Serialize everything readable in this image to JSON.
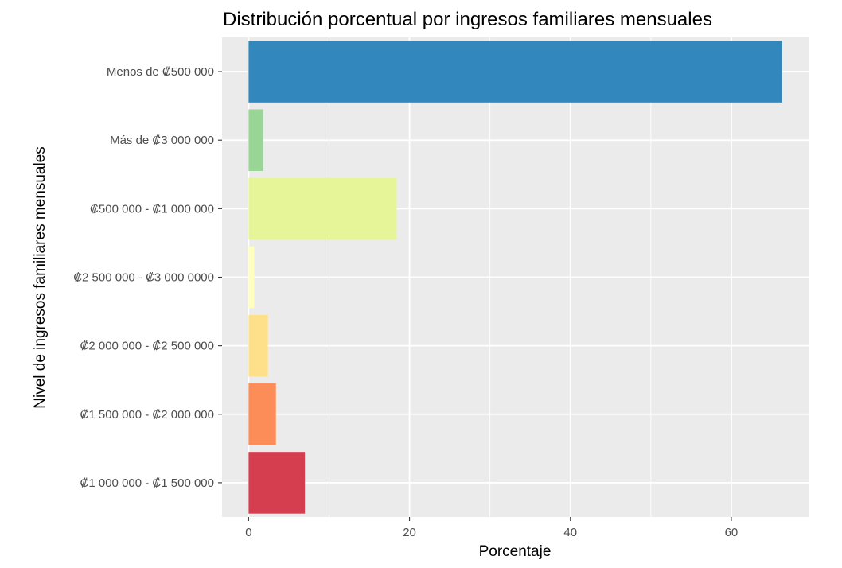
{
  "chart_data": {
    "type": "bar",
    "orientation": "horizontal",
    "title": "Distribución porcentual por ingresos familiares mensuales",
    "xlabel": "Porcentaje",
    "ylabel": "Nivel de ingresos familiares mensuales",
    "categories": [
      "Menos de ₡500 000",
      "Más de ₡3 000 000",
      "₡500 000 - ₡1 000 000",
      "₡2 500 000 - ₡3 000 0000",
      "₡2 000 000 - ₡2 500 000",
      "₡1 500 000 - ₡2 000 000",
      "₡1 000 000 - ₡1 500 000"
    ],
    "values": [
      66.3,
      1.8,
      18.4,
      0.7,
      2.4,
      3.4,
      7.0
    ],
    "colors": [
      "#3288bd",
      "#99d594",
      "#e6f598",
      "#ffffbf",
      "#fee08b",
      "#fc8d59",
      "#d53e4f"
    ],
    "xticks": [
      0,
      20,
      40,
      60
    ],
    "xlim": [
      -3.3,
      69.6
    ],
    "grid": true,
    "legend": "none",
    "panel_background": "#ebebeb"
  }
}
